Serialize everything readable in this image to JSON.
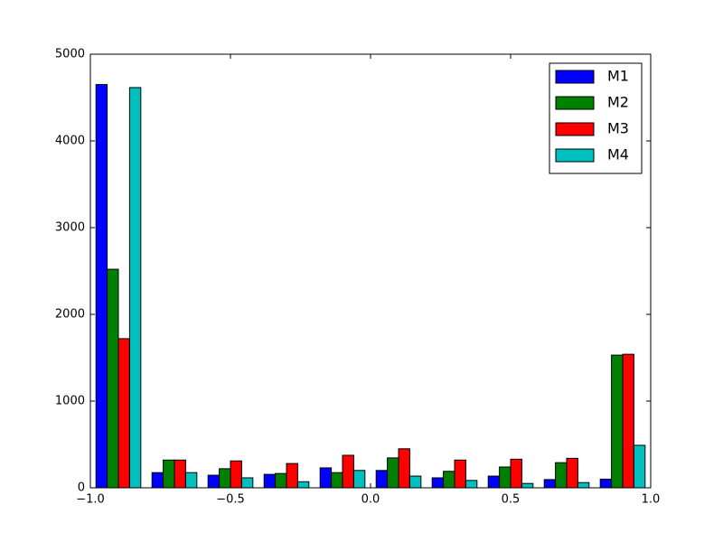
{
  "chart_data": {
    "type": "histogram",
    "bins": [
      -1.0,
      -0.8,
      -0.6,
      -0.4,
      -0.2,
      0.0,
      0.2,
      0.4,
      0.6,
      0.8,
      1.0
    ],
    "series": [
      {
        "name": "M1",
        "color": "#0000ff",
        "values": [
          4650,
          175,
          145,
          155,
          230,
          200,
          115,
          135,
          95,
          100
        ]
      },
      {
        "name": "M2",
        "color": "#008000",
        "values": [
          2520,
          320,
          220,
          165,
          175,
          345,
          190,
          240,
          290,
          1530
        ]
      },
      {
        "name": "M3",
        "color": "#ff0000",
        "values": [
          1720,
          320,
          310,
          280,
          375,
          450,
          320,
          330,
          340,
          1540
        ]
      },
      {
        "name": "M4",
        "color": "#00bfbf",
        "values": [
          4615,
          175,
          115,
          70,
          200,
          135,
          85,
          50,
          60,
          490
        ]
      }
    ],
    "xlim": [
      -1.0,
      1.0
    ],
    "xticks": [
      {
        "value": -1.0,
        "label": "−1.0"
      },
      {
        "value": -0.5,
        "label": "−0.5"
      },
      {
        "value": 0.0,
        "label": "0.0"
      },
      {
        "value": 0.5,
        "label": "0.5"
      },
      {
        "value": 1.0,
        "label": "1.0"
      }
    ],
    "ylim": [
      0,
      5000
    ],
    "yticks": [
      0,
      1000,
      2000,
      3000,
      4000,
      5000
    ],
    "legend": "upper right"
  }
}
